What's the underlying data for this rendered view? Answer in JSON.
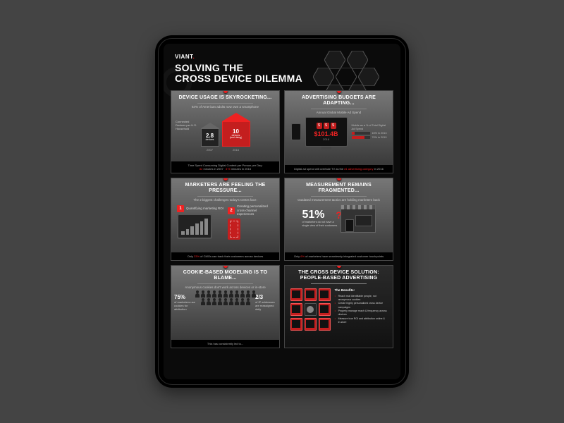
{
  "page": {
    "background_color": "#444444"
  },
  "brand": {
    "name": "VIANT",
    "accent": "."
  },
  "title_line1": "SOLVING THE",
  "title_line2": "CROSS DEVICE DILEMMA",
  "accent_color": "#e22222",
  "hex_devices": [
    "monitor",
    "laptop",
    "monitor",
    "question",
    "tablet",
    "phone",
    "tablet"
  ],
  "panels": {
    "p1": {
      "title": "DEVICE USAGE IS SKYROCKETING...",
      "subtitle": "64% of American adults now own a smartphone",
      "left_label": "Connected Devices per U.S. Household",
      "house_small": {
        "value": "2.8",
        "unit": "devices",
        "year": "2007"
      },
      "house_big": {
        "value": "10",
        "unit": "devices",
        "sub": "(and rising)",
        "year": "2016"
      },
      "footer_pre": "Time Spent Consuming Digital Content per Person per Day:",
      "footer_a": "82",
      "footer_a_suf": " minutes in 2007",
      "footer_b": "375",
      "footer_b_suf": " minutes in 2016"
    },
    "p2": {
      "title": "ADVERTISING BUDGETS ARE ADAPTING...",
      "subtitle": "Annual Global Mobile Ad Spend",
      "amount": "$101.4B",
      "amount_year": "2016",
      "bars_label": "Mobile as a % of Total Digital Ad Spend",
      "bar1": {
        "label": "2013",
        "pct": 16,
        "text": "16% in 2013"
      },
      "bar2": {
        "label": "2019",
        "pct": 70,
        "text": "70% in 2019"
      },
      "footer_pre": "Digital ad spend will overtake TV as the ",
      "footer_hl": "#1 advertising category",
      "footer_suf": " in 2016"
    },
    "p3": {
      "title": "MARKETERS ARE FEELING THE PRESSURE...",
      "subtitle": "The 2 biggest challenges today's CMOs face:",
      "badge1": "1",
      "challenge1": "Quantifying marketing ROI",
      "badge2": "2",
      "challenge2": "Creating personalized cross-channel experiences",
      "chart_bars": [
        20,
        35,
        50,
        65,
        80,
        95
      ],
      "footer_pre": "Only ",
      "footer_hl": "33%",
      "footer_suf": " of CMOs can track their customers across devices"
    },
    "p4": {
      "title": "MEASUREMENT REMAINS FRAGMENTED...",
      "subtitle": "Outdated measurement tactics are holding marketers back",
      "stat": "51%",
      "stat_desc": "of marketers do not have a single view of their customers",
      "footer_pre": "Only ",
      "footer_hl": "6%",
      "footer_suf": " of marketers have seamlessly integrated customer touchpoints"
    },
    "p5": {
      "title": "COOKIE-BASED MODELING IS TO BLAME...",
      "subtitle": "Anonymous cookies don't work across devices or in-store",
      "people_count": 20,
      "left_stat": "75%",
      "left_desc": "of marketers use cookies for attribution",
      "right_stat": "2/3",
      "right_desc": "of IP addresses are reassigned daily",
      "footer": "This has consistently led to..."
    },
    "p6": {
      "title": "THE CROSS DEVICE SOLUTION: PEOPLE-BASED ADVERTISING",
      "benefits_title": "The Benefits:",
      "benefits": [
        "Reach real identifiable people, not anonymous cookies",
        "Create highly personalized cross device campaigns",
        "Properly manage reach & frequency across devices",
        "Measure true ROI and attribution online & in-store"
      ]
    }
  }
}
